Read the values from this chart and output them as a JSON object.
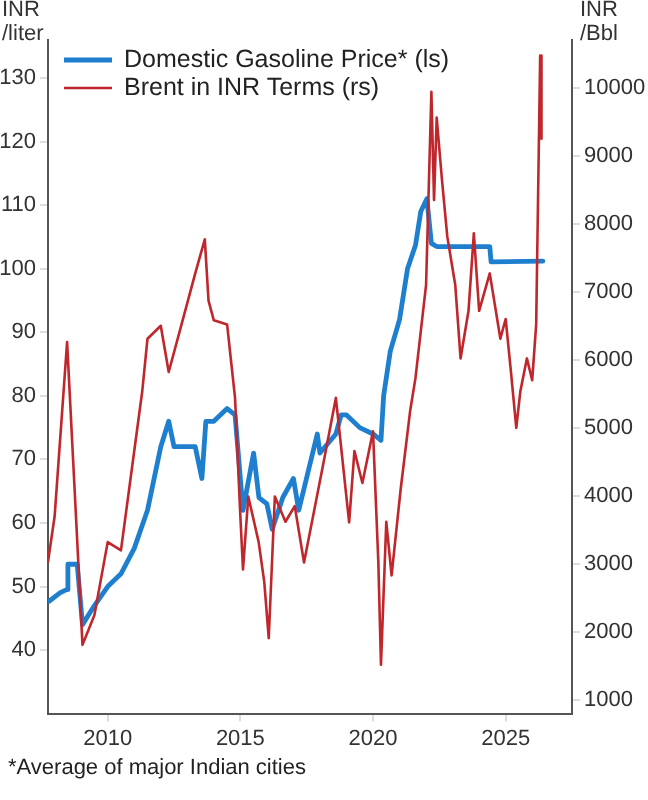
{
  "chart_data": {
    "type": "line",
    "ylabel": "INR /liter",
    "y2label": "INR /Bbl",
    "xlim": [
      2007.75,
      2027.5
    ],
    "xticks": [
      2010,
      2015,
      2020,
      2025
    ],
    "ylim": [
      30,
      136
    ],
    "yticks": [
      40,
      50,
      60,
      70,
      80,
      90,
      100,
      110,
      120,
      130
    ],
    "y2lim": [
      800,
      10700
    ],
    "y2ticks": [
      1000,
      2000,
      3000,
      4000,
      5000,
      6000,
      7000,
      8000,
      9000,
      10000
    ],
    "grid": false,
    "legend": "top left",
    "marker": "none",
    "line_style": "solid",
    "annotations": [
      "*Average of major Indian cities"
    ],
    "series": [
      {
        "name": "Domestic Gasoline Price* (ls)",
        "color": "#1f7fcf",
        "x": [
          2007.8,
          2008.2,
          2008.45,
          2008.5,
          2008.85,
          2009.05,
          2009.5,
          2010,
          2010.5,
          2011,
          2011.5,
          2012,
          2012.3,
          2012.5,
          2013,
          2013.3,
          2013.55,
          2013.7,
          2014,
          2014.5,
          2014.8,
          2015.1,
          2015.5,
          2015.7,
          2016,
          2016.2,
          2016.6,
          2017,
          2017.2,
          2017.9,
          2018,
          2018.6,
          2018.8,
          2019,
          2019.5,
          2020,
          2020.3,
          2020.4,
          2020.65,
          2021,
          2021.3,
          2021.6,
          2021.8,
          2022.03,
          2022.2,
          2022.4,
          2024.4,
          2024.45,
          2026.4
        ],
        "values": [
          47.7,
          49,
          49.5,
          53.5,
          53.5,
          44,
          47,
          50,
          52,
          56,
          62,
          72,
          76,
          72,
          72,
          72,
          67,
          76,
          76,
          78,
          77,
          62,
          71,
          64,
          63,
          59,
          64,
          67,
          62,
          74,
          71,
          74,
          77,
          77,
          75,
          74,
          73,
          80,
          87,
          92,
          100,
          103.7,
          109,
          111,
          104,
          103.5,
          103.5,
          101.1,
          101.2
        ]
      },
      {
        "name": "Brent in INR Terms (rs)",
        "color": "#c0272d",
        "axis": "y2",
        "x": [
          2007.75,
          2008.0,
          2008.47,
          2008.7,
          2009.05,
          2009.5,
          2010,
          2010.5,
          2011.1,
          2011.3,
          2011.5,
          2012,
          2012.3,
          2012.7,
          2013.3,
          2013.66,
          2013.8,
          2014,
          2014.5,
          2014.8,
          2015,
          2015.1,
          2015.3,
          2015.69,
          2015.9,
          2016.07,
          2016.3,
          2016.7,
          2017.05,
          2017.4,
          2018.13,
          2018.6,
          2019.1,
          2019.3,
          2019.6,
          2020,
          2020.2,
          2020.3,
          2020.5,
          2020.7,
          2021.04,
          2021.4,
          2021.6,
          2022,
          2022.2,
          2022.3,
          2022.4,
          2022.6,
          2022.8,
          2023.1,
          2023.3,
          2023.6,
          2023.8,
          2024,
          2024.4,
          2024.8,
          2025,
          2025.2,
          2025.4,
          2025.55,
          2025.8,
          2026,
          2026.15,
          2026.3,
          2026.35
        ],
        "values": [
          3030,
          3700,
          6260,
          4500,
          1810,
          2250,
          3320,
          3200,
          4950,
          5530,
          6310,
          6500,
          5820,
          6400,
          7270,
          7770,
          6870,
          6580,
          6520,
          5440,
          3700,
          2920,
          3990,
          3320,
          2740,
          1910,
          3990,
          3620,
          3850,
          3020,
          4480,
          5440,
          3610,
          4660,
          4190,
          4950,
          3030,
          1520,
          3620,
          2830,
          4090,
          5250,
          5730,
          7100,
          9940,
          8350,
          9560,
          8640,
          7810,
          7100,
          6020,
          6720,
          7860,
          6720,
          7270,
          6310,
          6600,
          5820,
          5000,
          5530,
          6020,
          5700,
          6520,
          10470,
          9250
        ]
      }
    ]
  }
}
